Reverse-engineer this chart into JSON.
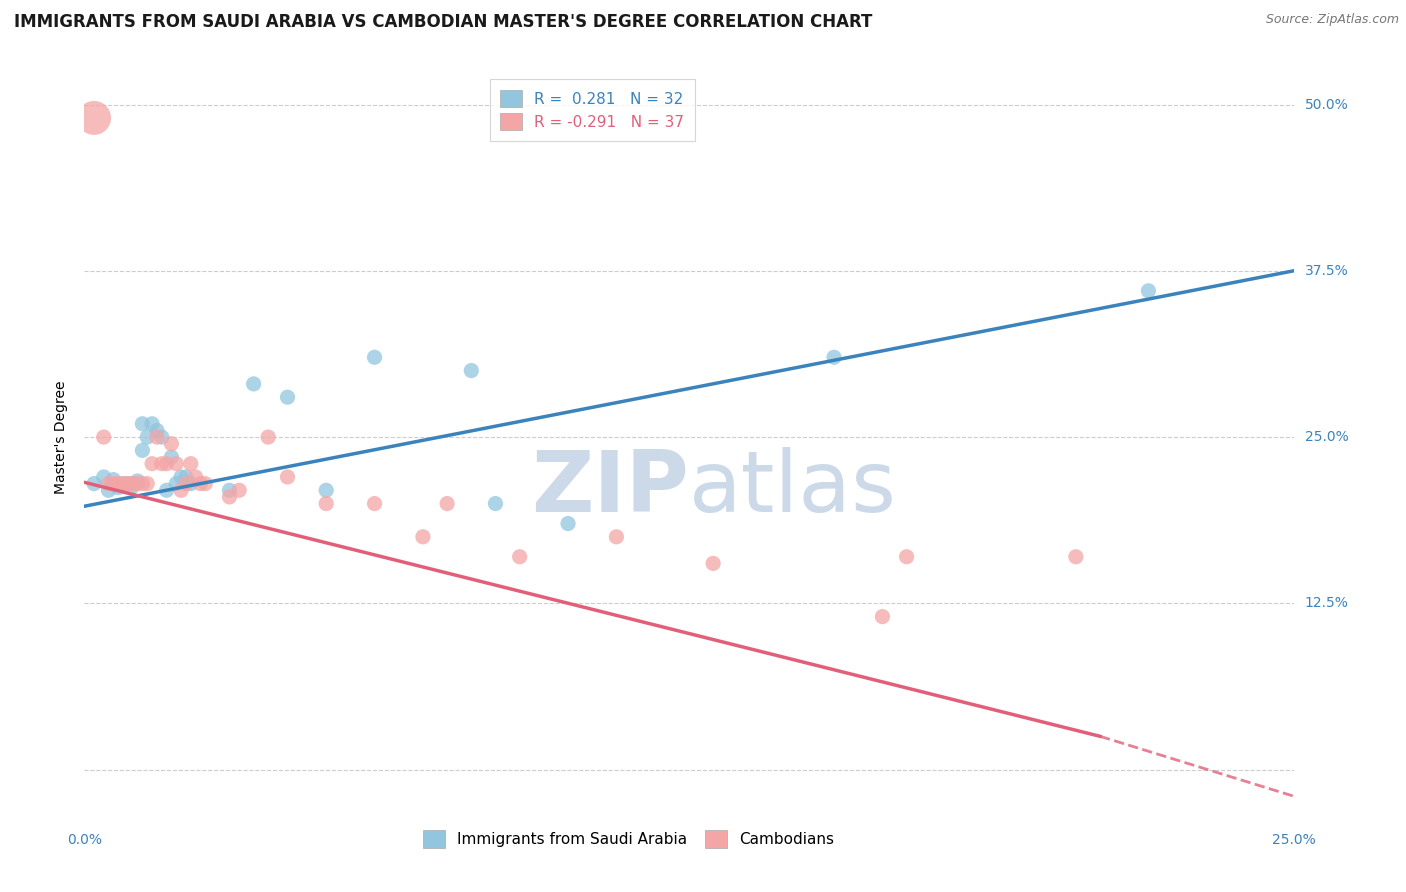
{
  "title": "IMMIGRANTS FROM SAUDI ARABIA VS CAMBODIAN MASTER'S DEGREE CORRELATION CHART",
  "source": "Source: ZipAtlas.com",
  "ylabel": "Master's Degree",
  "y_ticks": [
    0.0,
    0.125,
    0.25,
    0.375,
    0.5
  ],
  "y_tick_labels": [
    "",
    "12.5%",
    "25.0%",
    "37.5%",
    "50.0%"
  ],
  "xlim": [
    0.0,
    0.25
  ],
  "ylim": [
    -0.025,
    0.525
  ],
  "blue_R": "0.281",
  "blue_N": "32",
  "pink_R": "-0.291",
  "pink_N": "37",
  "blue_color": "#92c5de",
  "pink_color": "#f4a5a5",
  "blue_line_color": "#3b83bd",
  "pink_line_color": "#e0607a",
  "watermark_color": "#ccd9e8",
  "blue_line_x0": 0.0,
  "blue_line_y0": 0.198,
  "blue_line_x1": 0.25,
  "blue_line_y1": 0.375,
  "pink_line_x0": 0.0,
  "pink_line_y0": 0.216,
  "pink_line_x1_solid": 0.21,
  "pink_line_y1_solid": 0.025,
  "pink_line_x1_dash": 0.25,
  "pink_line_y1_dash": -0.02,
  "blue_points_x": [
    0.002,
    0.004,
    0.005,
    0.006,
    0.007,
    0.008,
    0.009,
    0.01,
    0.01,
    0.011,
    0.012,
    0.012,
    0.013,
    0.014,
    0.015,
    0.016,
    0.017,
    0.018,
    0.019,
    0.02,
    0.021,
    0.022,
    0.03,
    0.035,
    0.042,
    0.05,
    0.06,
    0.08,
    0.085,
    0.1,
    0.155,
    0.22
  ],
  "blue_points_y": [
    0.215,
    0.22,
    0.21,
    0.218,
    0.212,
    0.215,
    0.215,
    0.215,
    0.213,
    0.217,
    0.26,
    0.24,
    0.25,
    0.26,
    0.255,
    0.25,
    0.21,
    0.235,
    0.215,
    0.22,
    0.22,
    0.215,
    0.21,
    0.29,
    0.28,
    0.21,
    0.31,
    0.3,
    0.2,
    0.185,
    0.31,
    0.36
  ],
  "pink_points_x": [
    0.002,
    0.004,
    0.005,
    0.006,
    0.007,
    0.008,
    0.009,
    0.01,
    0.011,
    0.012,
    0.013,
    0.014,
    0.015,
    0.016,
    0.017,
    0.018,
    0.019,
    0.02,
    0.021,
    0.022,
    0.023,
    0.024,
    0.025,
    0.03,
    0.032,
    0.038,
    0.042,
    0.05,
    0.06,
    0.07,
    0.075,
    0.09,
    0.11,
    0.13,
    0.165,
    0.17,
    0.205
  ],
  "pink_points_y": [
    0.49,
    0.25,
    0.215,
    0.215,
    0.215,
    0.215,
    0.215,
    0.215,
    0.215,
    0.215,
    0.215,
    0.23,
    0.25,
    0.23,
    0.23,
    0.245,
    0.23,
    0.21,
    0.215,
    0.23,
    0.22,
    0.215,
    0.215,
    0.205,
    0.21,
    0.25,
    0.22,
    0.2,
    0.2,
    0.175,
    0.2,
    0.16,
    0.175,
    0.155,
    0.115,
    0.16,
    0.16
  ],
  "blue_scatter_sizes": [
    120,
    120,
    120,
    120,
    120,
    120,
    120,
    120,
    120,
    120,
    120,
    120,
    120,
    120,
    120,
    120,
    120,
    120,
    120,
    120,
    120,
    120,
    120,
    120,
    120,
    120,
    120,
    120,
    120,
    120,
    120,
    120
  ],
  "pink_scatter_sizes": [
    600,
    120,
    120,
    120,
    120,
    120,
    120,
    120,
    120,
    120,
    120,
    120,
    120,
    120,
    120,
    120,
    120,
    120,
    120,
    120,
    120,
    120,
    120,
    120,
    120,
    120,
    120,
    120,
    120,
    120,
    120,
    120,
    120,
    120,
    120,
    120,
    120
  ],
  "background_color": "#ffffff",
  "grid_color": "#cccccc",
  "title_fontsize": 12,
  "axis_label_fontsize": 10,
  "tick_fontsize": 10,
  "legend_fontsize": 11
}
